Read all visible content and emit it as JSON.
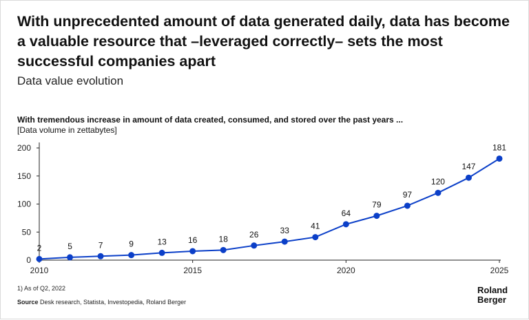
{
  "header": {
    "headline": "With unprecedented amount of data generated daily, data has become a valuable resource that –leveraged correctly– sets the most successful companies apart",
    "subtitle": "Data value evolution"
  },
  "footer": {
    "footnote": "1) As of Q2, 2022",
    "source_label": "Source",
    "source_text": "Desk research, Statista, Investopedia, Roland Berger",
    "logo_line1": "Roland",
    "logo_line2": "Berger"
  },
  "colors": {
    "line": "#0b3fc8",
    "marker": "#0b3fc8",
    "axis": "#222222"
  },
  "chart_data": {
    "type": "line",
    "title": "With tremendous increase in amount of data created, consumed, and stored over the past years ...",
    "ylabel": "[Data volume in zettabytes]",
    "xlabel": "",
    "x": [
      2010,
      2011,
      2012,
      2013,
      2014,
      2015,
      2016,
      2017,
      2018,
      2019,
      2020,
      2021,
      2022,
      2023,
      2024,
      2025
    ],
    "values": [
      2,
      5,
      7,
      9,
      13,
      16,
      18,
      26,
      33,
      41,
      64,
      79,
      97,
      120,
      147,
      181
    ],
    "data_labels": [
      "2",
      "5",
      "7",
      "9",
      "13",
      "16",
      "18",
      "26",
      "33",
      "41",
      "64",
      "79",
      "97",
      "120",
      "147",
      "181"
    ],
    "x_ticks": [
      2010,
      2015,
      2020,
      2025
    ],
    "x_tick_labels": [
      "2010",
      "2015",
      "2020",
      "2025"
    ],
    "y_ticks": [
      0,
      50,
      100,
      150,
      200
    ],
    "y_tick_labels": [
      "0",
      "50",
      "100",
      "150",
      "200"
    ],
    "ylim": [
      0,
      200
    ],
    "xlim": [
      2010,
      2025
    ],
    "grid": false
  }
}
